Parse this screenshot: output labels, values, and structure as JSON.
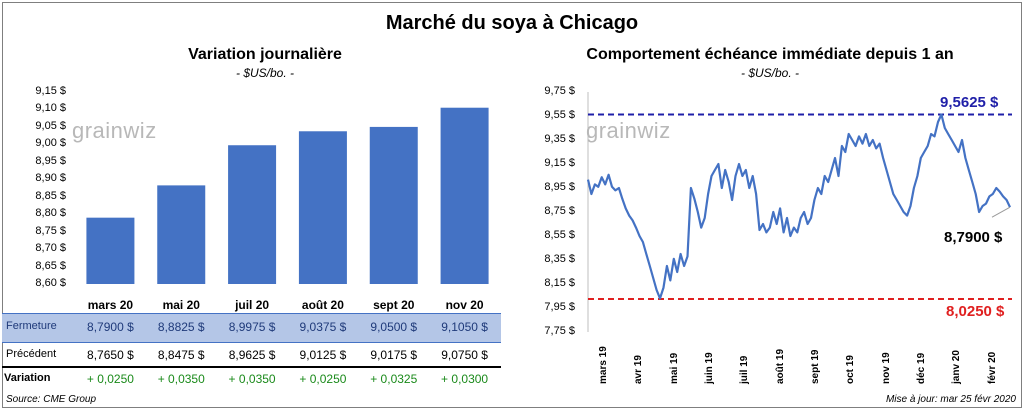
{
  "main_title": "Marché du soya à Chicago",
  "watermark": "grainwiz",
  "left_panel": {
    "title": "Variation journalière",
    "unit": "- $US/bo. -",
    "y_ticks": [
      "9,15 $",
      "9,10 $",
      "9,05 $",
      "9,00 $",
      "8,95 $",
      "8,90 $",
      "8,85 $",
      "8,80 $",
      "8,75 $",
      "8,70 $",
      "8,65 $",
      "8,60 $"
    ],
    "table": {
      "row_labels": {
        "close": "Fermeture",
        "prev": "Précédent",
        "change": "Variation"
      },
      "close": [
        "8,7900  $",
        "8,8825  $",
        "8,9975  $",
        "9,0375  $",
        "9,0500  $",
        "9,1050  $"
      ],
      "prev": [
        "8,7650  $",
        "8,8475  $",
        "8,9625  $",
        "9,0125  $",
        "9,0175  $",
        "9,0750  $"
      ],
      "change": [
        "+ 0,0250",
        "+ 0,0350",
        "+ 0,0350",
        "+ 0,0250",
        "+ 0,0325",
        "+ 0,0300"
      ]
    }
  },
  "right_panel": {
    "title": "Comportement  échéance immédiate depuis 1 an",
    "unit": "- $US/bo. -",
    "y_ticks": [
      "9,75 $",
      "9,55 $",
      "9,35 $",
      "9,15 $",
      "8,95 $",
      "8,75 $",
      "8,55 $",
      "8,35 $",
      "8,15 $",
      "7,95 $",
      "7,75 $"
    ],
    "x_ticks": [
      "mars 19",
      "avr 19",
      "mai 19",
      "juin 19",
      "juil 19",
      "août 19",
      "sept 19",
      "oct 19",
      "nov 19",
      "déc 19",
      "janv 20",
      "févr 20"
    ],
    "high_label": "9,5625  $",
    "low_label": "8,0250  $",
    "last_label": "8,7900 $"
  },
  "footer": {
    "source": "Source: CME Group",
    "updated": "Mise à jour: mar 25 févr 2020"
  },
  "colors": {
    "bar": "#4472c4",
    "line": "#4472c4",
    "high": "#1f1fa8",
    "low": "#e02020",
    "positive": "#1a8a1a",
    "table_highlight": "#b4c6e7"
  },
  "chart_data": [
    {
      "type": "bar",
      "title": "Variation journalière",
      "categories": [
        "mars 20",
        "mai 20",
        "juil 20",
        "août 20",
        "sept 20",
        "nov 20"
      ],
      "values": [
        8.79,
        8.8825,
        8.9975,
        9.0375,
        9.05,
        9.105
      ],
      "ylim": [
        8.6,
        9.15
      ]
    },
    {
      "type": "line",
      "title": "Comportement  échéance immédiate depuis 1 an",
      "ylim": [
        7.75,
        9.75
      ],
      "x_ticks": [
        "mars 19",
        "avr 19",
        "mai 19",
        "juin 19",
        "juil 19",
        "août 19",
        "sept 19",
        "oct 19",
        "nov 19",
        "déc 19",
        "janv 20",
        "févr 20"
      ],
      "series": [
        {
          "values": [
            9.02,
            8.9,
            8.98,
            8.96,
            9.04,
            8.98,
            9.06,
            8.96,
            8.93,
            8.95,
            8.86,
            8.78,
            8.72,
            8.68,
            8.62,
            8.55,
            8.5,
            8.4,
            8.3,
            8.2,
            8.1,
            8.03,
            8.12,
            8.3,
            8.18,
            8.36,
            8.25,
            8.4,
            8.3,
            8.38,
            8.95,
            8.86,
            8.75,
            8.62,
            8.7,
            8.9,
            9.05,
            9.1,
            9.15,
            8.95,
            9.1,
            9.0,
            8.85,
            9.05,
            9.15,
            9.05,
            9.1,
            8.95,
            9.05,
            8.9,
            8.6,
            8.65,
            8.58,
            8.62,
            8.75,
            8.65,
            8.78,
            8.58,
            8.7,
            8.55,
            8.62,
            8.58,
            8.7,
            8.75,
            8.65,
            8.7,
            8.85,
            8.95,
            8.9,
            9.05,
            9.0,
            9.1,
            9.2,
            9.05,
            9.3,
            9.25,
            9.4,
            9.35,
            9.3,
            9.38,
            9.32,
            9.4,
            9.3,
            9.35,
            9.28,
            9.32,
            9.2,
            9.1,
            9.0,
            8.9,
            8.85,
            8.8,
            8.75,
            8.72,
            8.8,
            8.95,
            9.05,
            9.2,
            9.25,
            9.3,
            9.4,
            9.38,
            9.5,
            9.5625,
            9.45,
            9.4,
            9.35,
            9.3,
            9.25,
            9.35,
            9.2,
            9.1,
            9.0,
            8.9,
            8.75,
            8.8,
            8.82,
            8.88,
            8.9,
            8.95,
            8.92,
            8.88,
            8.85,
            8.79
          ],
          "high": 9.5625,
          "low": 8.025,
          "last": 8.79
        }
      ]
    }
  ]
}
